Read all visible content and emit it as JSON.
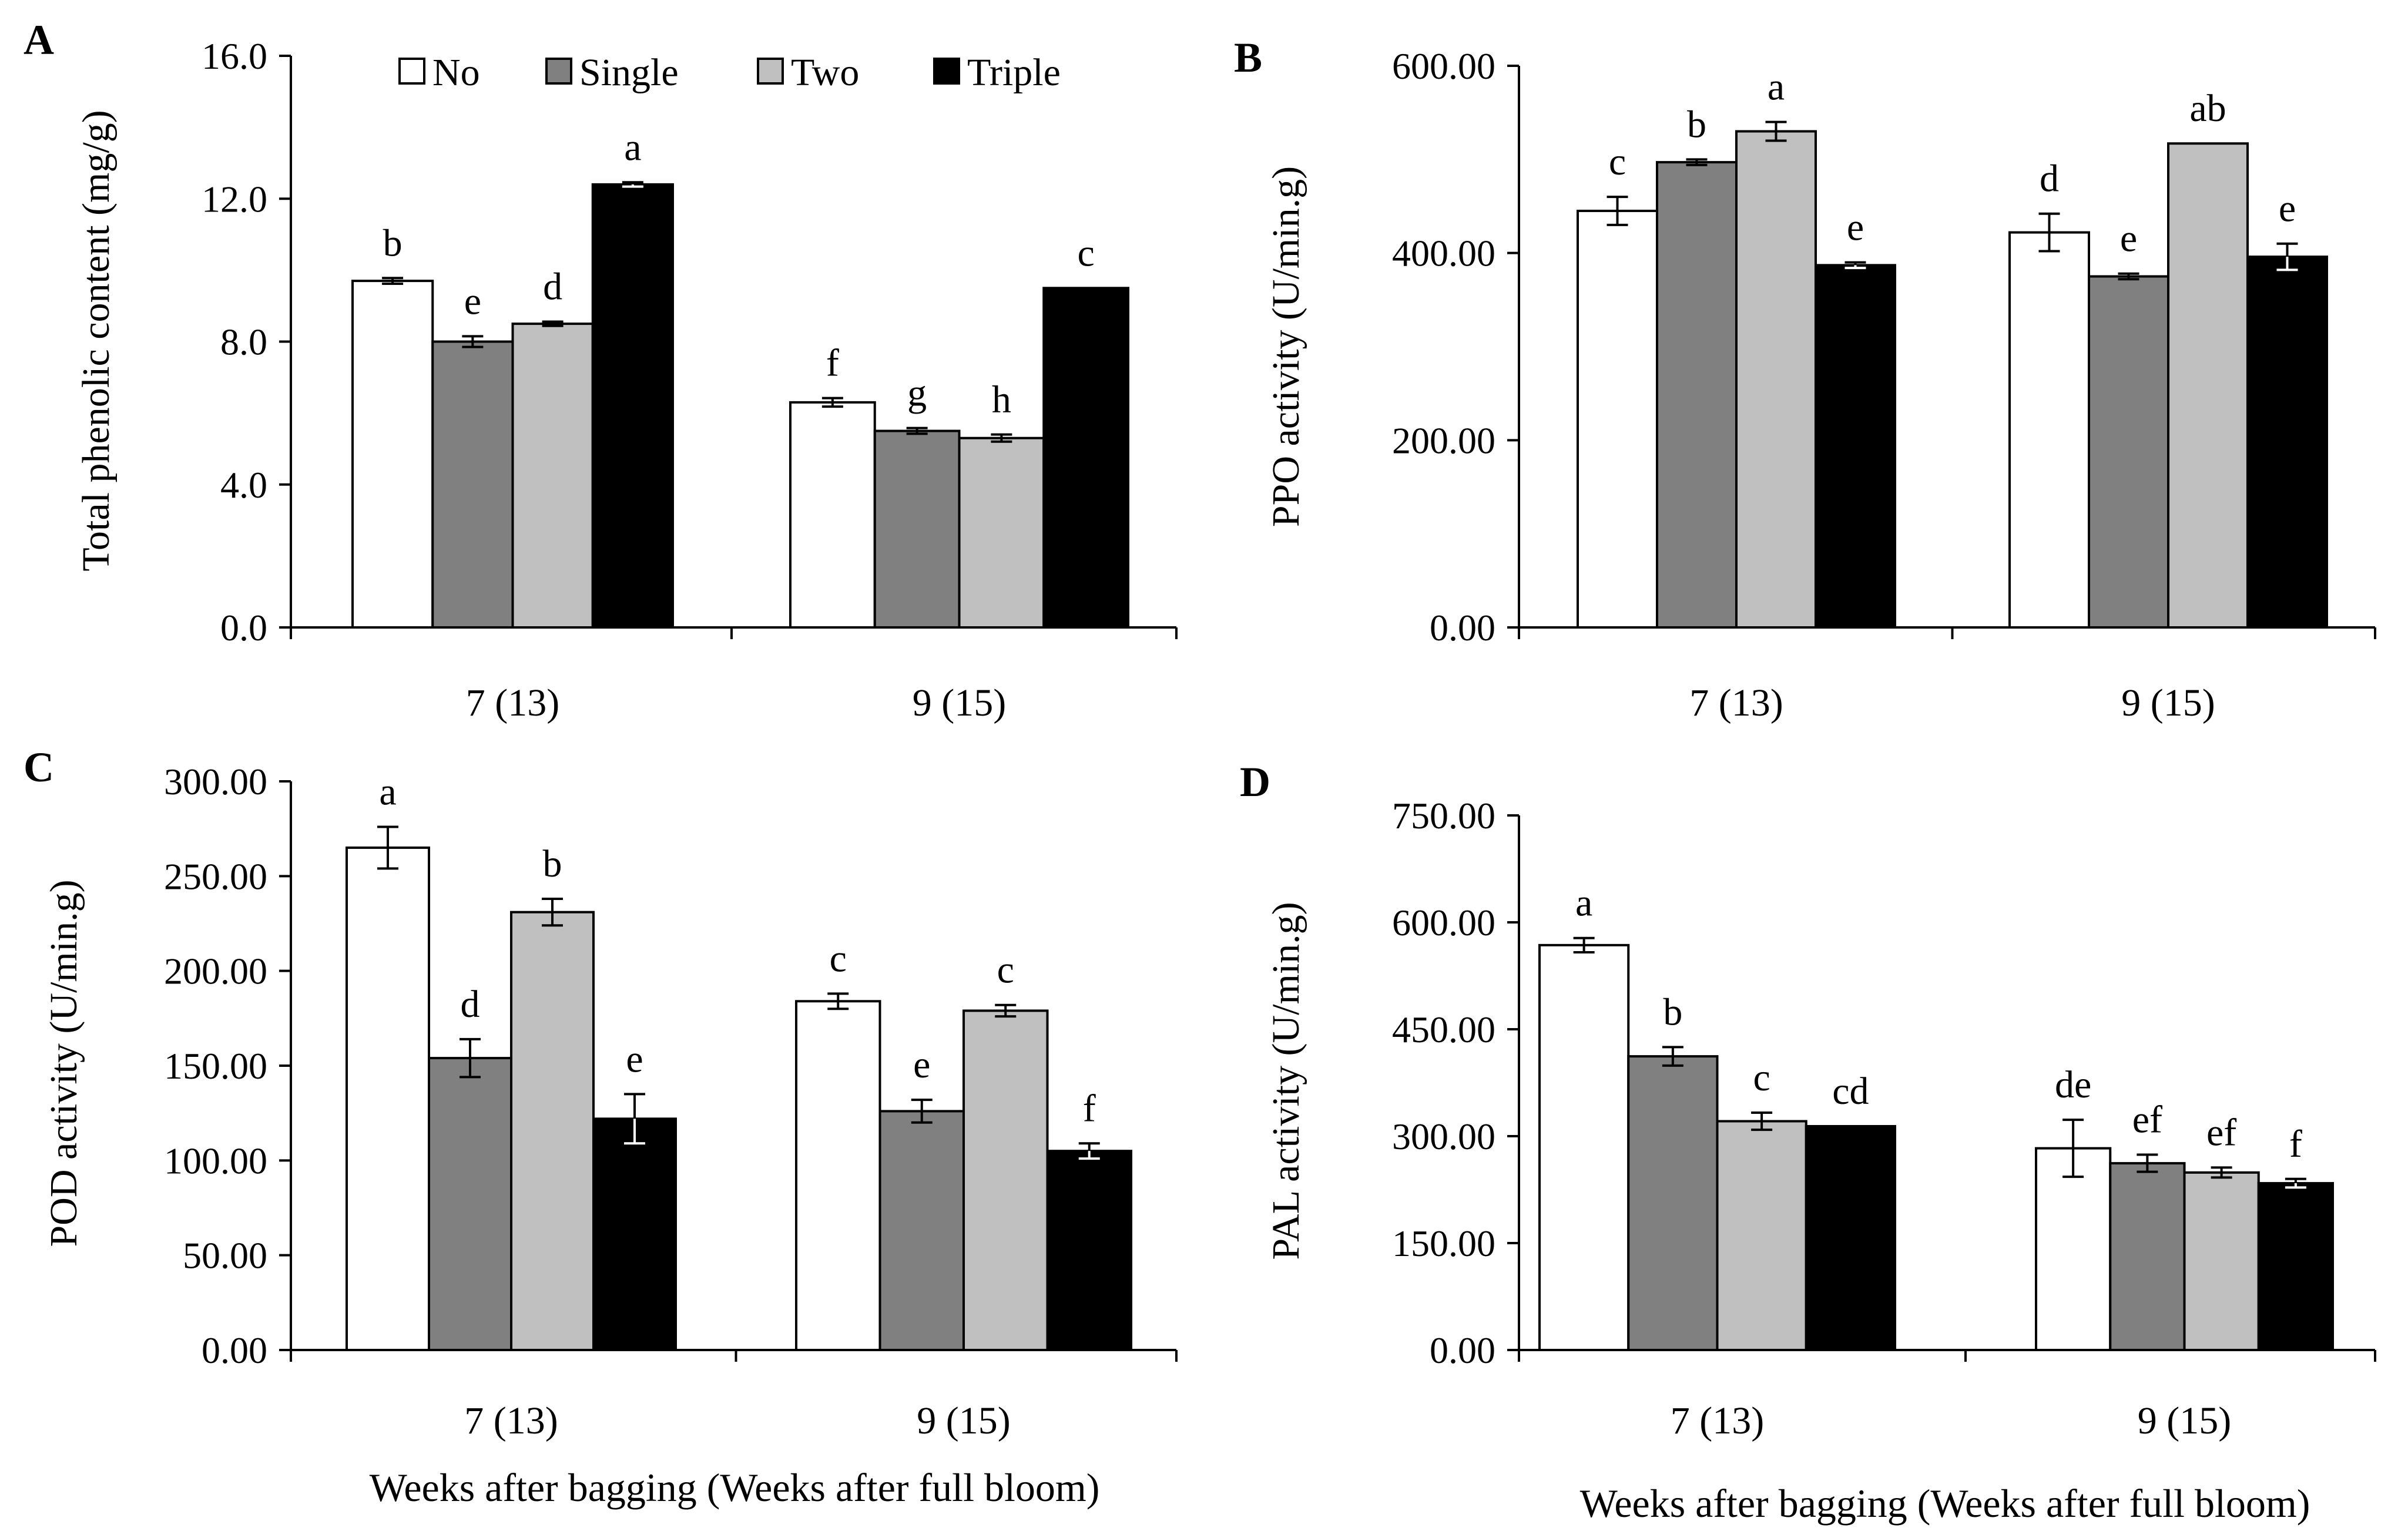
{
  "legend": [
    "No",
    "Single",
    "Two",
    "Triple"
  ],
  "colors": {
    "No": "#ffffff",
    "Single": "#808080",
    "Two": "#c0c0c0",
    "Triple": "#000000",
    "axis": "#000000"
  },
  "chart_data": [
    {
      "panel": "A",
      "type": "bar",
      "categories": [
        "7 (13)",
        "9 (15)"
      ],
      "ylabel": "Total phenolic content (mg/g)",
      "xlabel": "",
      "ylim": [
        0,
        16
      ],
      "yticks": [
        "0.0",
        "4.0",
        "8.0",
        "12.0",
        "16.0"
      ],
      "series": [
        {
          "name": "No",
          "values": [
            9.7,
            6.3
          ],
          "errors": [
            0.08,
            0.12
          ],
          "letters": [
            "b",
            "f"
          ]
        },
        {
          "name": "Single",
          "values": [
            8.0,
            5.5
          ],
          "errors": [
            0.15,
            0.08
          ],
          "letters": [
            "e",
            "g"
          ]
        },
        {
          "name": "Two",
          "values": [
            8.5,
            5.3
          ],
          "errors": [
            0.06,
            0.1
          ],
          "letters": [
            "d",
            "h"
          ]
        },
        {
          "name": "Triple",
          "values": [
            12.4,
            9.5
          ],
          "errors": [
            0.06,
            0.0
          ],
          "letters": [
            "a",
            "c"
          ]
        }
      ]
    },
    {
      "panel": "B",
      "type": "bar",
      "categories": [
        "7 (13)",
        "9 (15)"
      ],
      "ylabel": "PPO activity (U/min.g)",
      "xlabel": "",
      "ylim": [
        0,
        600
      ],
      "yticks": [
        "0.00",
        "200.00",
        "400.00",
        "600.00"
      ],
      "series": [
        {
          "name": "No",
          "values": [
            445,
            422
          ],
          "errors": [
            15,
            20
          ],
          "letters": [
            "c",
            "d"
          ]
        },
        {
          "name": "Single",
          "values": [
            497,
            375
          ],
          "errors": [
            3,
            3
          ],
          "letters": [
            "b",
            "e"
          ]
        },
        {
          "name": "Two",
          "values": [
            530,
            517
          ],
          "errors": [
            10,
            0
          ],
          "letters": [
            "a",
            "ab"
          ]
        },
        {
          "name": "Triple",
          "values": [
            387,
            396
          ],
          "errors": [
            3,
            14
          ],
          "letters": [
            "e",
            "e"
          ]
        }
      ]
    },
    {
      "panel": "C",
      "type": "bar",
      "categories": [
        "7 (13)",
        "9 (15)"
      ],
      "ylabel": "POD activity (U/min.g)",
      "xlabel": "Weeks after bagging (Weeks after full bloom)",
      "ylim": [
        0,
        300
      ],
      "yticks": [
        "0.00",
        "50.00",
        "100.00",
        "150.00",
        "200.00",
        "250.00",
        "300.00"
      ],
      "series": [
        {
          "name": "No",
          "values": [
            265,
            184
          ],
          "errors": [
            11,
            4
          ],
          "letters": [
            "a",
            "c"
          ]
        },
        {
          "name": "Single",
          "values": [
            154,
            126
          ],
          "errors": [
            10,
            6
          ],
          "letters": [
            "d",
            "e"
          ]
        },
        {
          "name": "Two",
          "values": [
            231,
            179
          ],
          "errors": [
            7,
            3
          ],
          "letters": [
            "b",
            "c"
          ]
        },
        {
          "name": "Triple",
          "values": [
            122,
            105
          ],
          "errors": [
            13,
            4
          ],
          "letters": [
            "e",
            "f"
          ]
        }
      ]
    },
    {
      "panel": "D",
      "type": "bar",
      "categories": [
        "7 (13)",
        "9 (15)"
      ],
      "ylabel": "PAL activity (U/min.g)",
      "xlabel": "Weeks after bagging (Weeks after full bloom)",
      "ylim": [
        0,
        750
      ],
      "yticks": [
        "0.00",
        "150.00",
        "300.00",
        "450.00",
        "600.00",
        "750.00"
      ],
      "series": [
        {
          "name": "No",
          "values": [
            568,
            283
          ],
          "errors": [
            10,
            40
          ],
          "letters": [
            "a",
            "de"
          ]
        },
        {
          "name": "Single",
          "values": [
            412,
            262
          ],
          "errors": [
            13,
            12
          ],
          "letters": [
            "b",
            "ef"
          ]
        },
        {
          "name": "Two",
          "values": [
            321,
            249
          ],
          "errors": [
            12,
            7
          ],
          "letters": [
            "c",
            "ef"
          ]
        },
        {
          "name": "Triple",
          "values": [
            314,
            234
          ],
          "errors": [
            0,
            6
          ],
          "letters": [
            "cd",
            "f"
          ]
        }
      ]
    }
  ]
}
